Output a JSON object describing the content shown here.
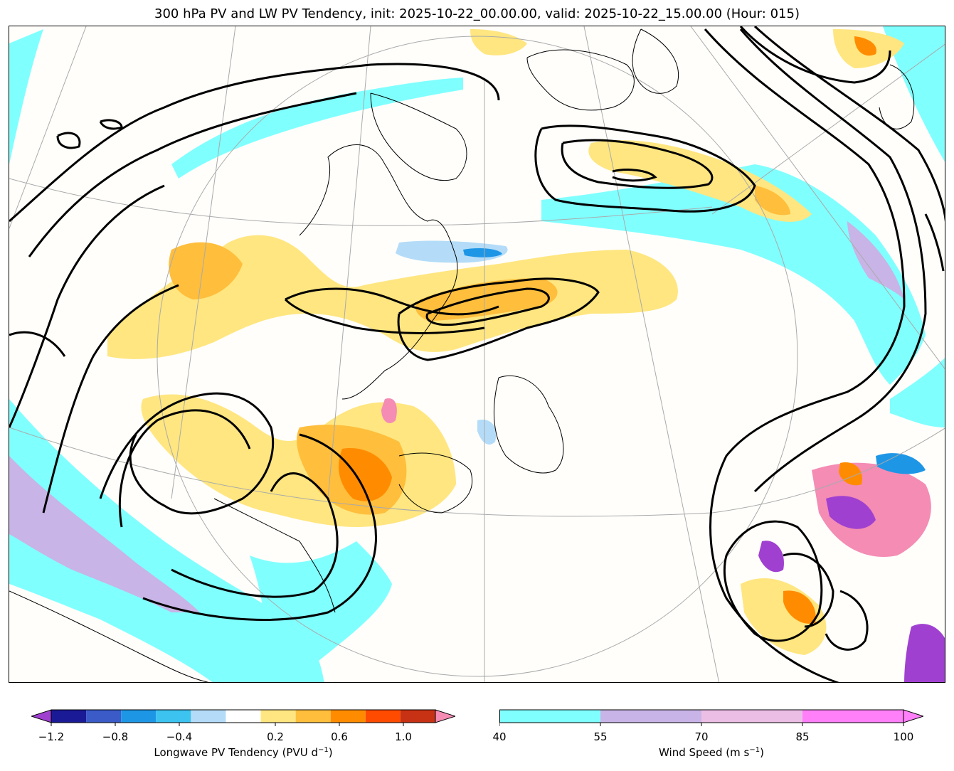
{
  "title": "300 hPa PV and LW PV Tendency, init: 2025-10-22_00.00.00, valid: 2025-10-22_15.00.00 (Hour: 015)",
  "colorbars": {
    "pv_tendency": {
      "label": "Longwave PV Tendency (PVU d",
      "label_sup": "−1",
      "label_end": ")",
      "ticks": [
        "−1.2",
        "−0.8",
        "−0.4",
        "0.2",
        "0.6",
        "1.0"
      ],
      "tick_values": [
        -1.2,
        -0.8,
        -0.4,
        0.2,
        0.6,
        1.0
      ],
      "levels": [
        -1.2,
        -1.0,
        -0.8,
        -0.6,
        -0.4,
        -0.2,
        0.2,
        0.4,
        0.6,
        0.8,
        1.0,
        1.2
      ],
      "colors": [
        "#1a1a96",
        "#3a5bc8",
        "#1e96e6",
        "#3cc3f0",
        "#b4dcf8",
        "#ffffff",
        "#ffe680",
        "#ffbe3c",
        "#ff8c00",
        "#ff4b00",
        "#c83214"
      ],
      "under_color": "#a040d0",
      "over_color": "#f48cb4"
    },
    "wind_speed": {
      "label": "Wind Speed (m s",
      "label_sup": "−1",
      "label_end": ")",
      "ticks": [
        "40",
        "55",
        "70",
        "85",
        "100"
      ],
      "tick_values": [
        40,
        55,
        70,
        85,
        100
      ],
      "colors": [
        "#80ffff",
        "#c8b4e6",
        "#ebbee6",
        "#ff80f8"
      ],
      "over_color": "#ff80f8"
    }
  },
  "map_colors": {
    "jet_cyan": "#80ffff",
    "jet_purple": "#c8b4e6",
    "pv_pos_light": "#ffe680",
    "pv_pos_mid": "#ffbe3c",
    "pv_pos_strong": "#ff8c00",
    "pv_pos_max": "#f48cb4",
    "pv_neg_light": "#b4dcf8",
    "pv_neg_mid": "#3cc3f0",
    "pv_neg_strong": "#1e96e6",
    "contour": "#000000"
  }
}
